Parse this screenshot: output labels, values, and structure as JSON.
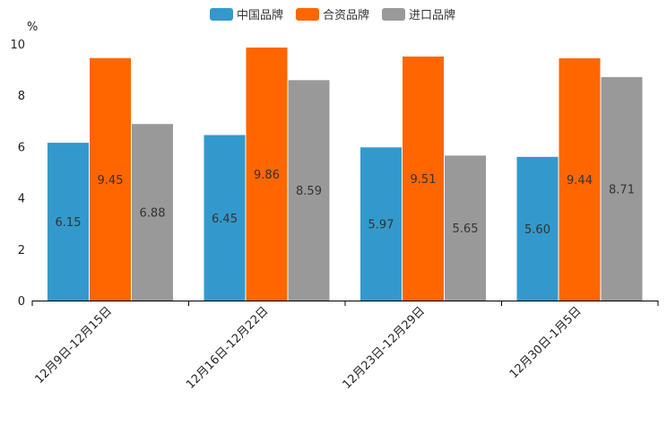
{
  "chart_data": {
    "type": "bar",
    "title": "",
    "xlabel": "",
    "ylabel": "%",
    "ylim": [
      0,
      10
    ],
    "yticks": [
      0,
      2,
      4,
      6,
      8,
      10
    ],
    "legend_position": "top-center",
    "categories": [
      "12月9日-12月15日",
      "12月16日-12月22日",
      "12月23日-12月29日",
      "12月30日-1月5日"
    ],
    "series": [
      {
        "name": "中国品牌",
        "color": "#3399cc",
        "values": [
          6.15,
          6.45,
          5.97,
          5.6
        ],
        "labels": [
          "6.15",
          "6.45",
          "5.97",
          "5.60"
        ]
      },
      {
        "name": "合资品牌",
        "color": "#ff6600",
        "values": [
          9.45,
          9.86,
          9.51,
          9.44
        ],
        "labels": [
          "9.45",
          "9.86",
          "9.51",
          "9.44"
        ]
      },
      {
        "name": "进口品牌",
        "color": "#999999",
        "values": [
          6.88,
          8.59,
          5.65,
          8.71
        ],
        "labels": [
          "6.88",
          "8.59",
          "5.65",
          "8.71"
        ]
      }
    ]
  }
}
